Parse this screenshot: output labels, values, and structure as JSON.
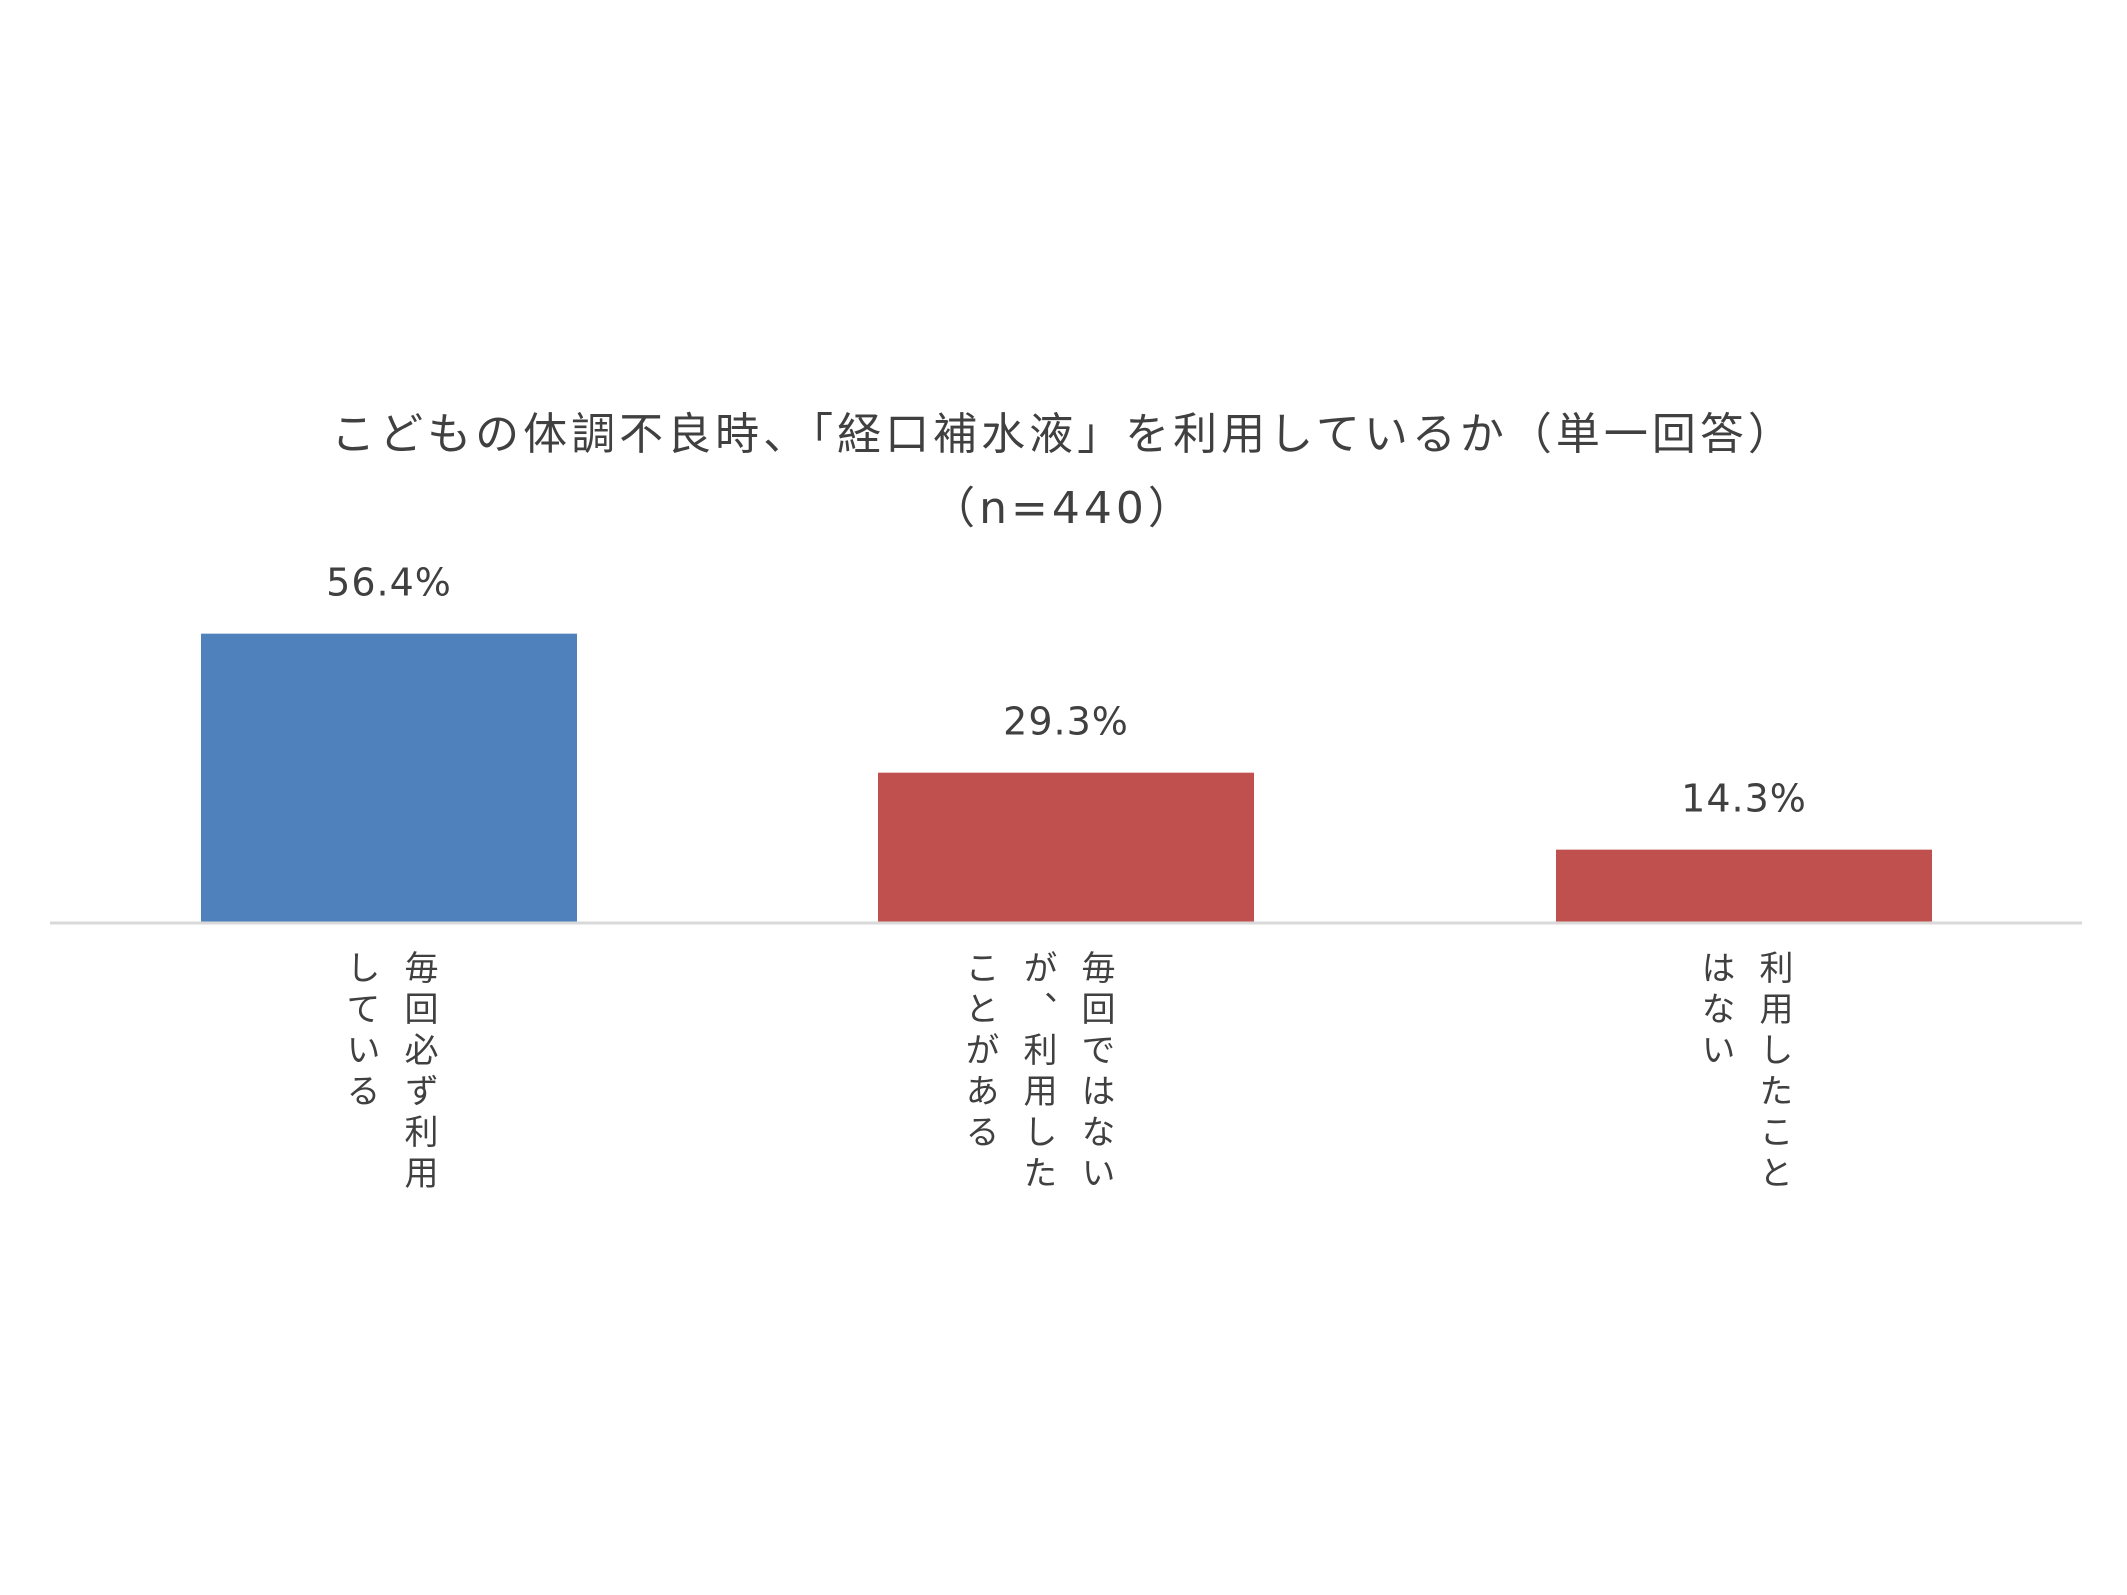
{
  "chart_data": {
    "type": "bar",
    "title": "こどもの体調不良時、「経口補水液」を利用しているか（単一回答）",
    "subtitle": "（n=440）",
    "categories": [
      "毎回必ず利用している",
      "毎回ではないが、利用したことがある",
      "利用したことはない"
    ],
    "category_lines": [
      [
        "毎回必ず利用",
        "している"
      ],
      [
        "毎回ではない",
        "が、利用した",
        "ことがある"
      ],
      [
        "利用したこと",
        "はない"
      ]
    ],
    "values": [
      56.4,
      29.3,
      14.3
    ],
    "data_labels": [
      "56.4%",
      "29.3%",
      "14.3%"
    ],
    "colors": [
      "#4F81BD",
      "#C0504D",
      "#C0504D"
    ],
    "axis_color": "#D9D9D9",
    "ylim": [
      0,
      60
    ],
    "grid": false,
    "legend": "none"
  }
}
